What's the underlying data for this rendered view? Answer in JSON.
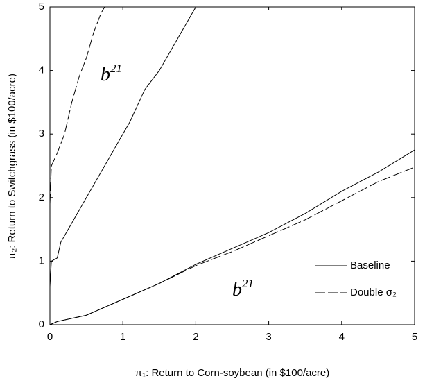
{
  "chart_data": {
    "type": "line",
    "xlabel": "π₁: Return to Corn-soybean (in $100/acre)",
    "ylabel": "π₂: Return to Switchgrass (in $100/acre)",
    "xlim": [
      0,
      5
    ],
    "ylim": [
      0,
      5
    ],
    "xticks": [
      0,
      1,
      2,
      3,
      4,
      5
    ],
    "yticks": [
      0,
      1,
      2,
      3,
      4,
      5
    ],
    "legend": "lower right",
    "annotations": [
      {
        "text": "b",
        "sup": "21"
      },
      {
        "text": "b",
        "sup": "21"
      }
    ],
    "series": [
      {
        "name": "Baseline",
        "color": "#000000",
        "dash": "none",
        "curves": [
          {
            "x": [
              0,
              0.02,
              0.1,
              0.15,
              0.3,
              0.5,
              0.7,
              0.9,
              1.1,
              1.3,
              1.5,
              1.7,
              1.9,
              2.0
            ],
            "y": [
              0.6,
              1.0,
              1.05,
              1.3,
              1.6,
              2.0,
              2.4,
              2.8,
              3.2,
              3.7,
              4.0,
              4.4,
              4.8,
              5.0
            ]
          },
          {
            "x": [
              0,
              0.1,
              0.5,
              1,
              1.5,
              2,
              2.5,
              3,
              3.5,
              4,
              4.5,
              5
            ],
            "y": [
              0,
              0.05,
              0.15,
              0.4,
              0.65,
              0.95,
              1.2,
              1.45,
              1.75,
              2.1,
              2.4,
              2.75
            ]
          }
        ]
      },
      {
        "name": "Double σ₂",
        "color": "#000000",
        "dash": "14 4",
        "curves": [
          {
            "x": [
              0,
              0.02,
              0.1,
              0.2,
              0.3,
              0.4,
              0.5,
              0.6,
              0.7,
              0.75
            ],
            "y": [
              1.9,
              2.5,
              2.7,
              3.0,
              3.5,
              3.9,
              4.2,
              4.6,
              4.9,
              5.0
            ]
          },
          {
            "x": [
              0,
              0.1,
              0.5,
              1,
              1.5,
              2,
              2.5,
              3,
              3.5,
              4,
              4.5,
              5
            ],
            "y": [
              0,
              0.05,
              0.15,
              0.4,
              0.65,
              0.93,
              1.15,
              1.4,
              1.65,
              1.95,
              2.25,
              2.48
            ]
          }
        ]
      }
    ]
  }
}
